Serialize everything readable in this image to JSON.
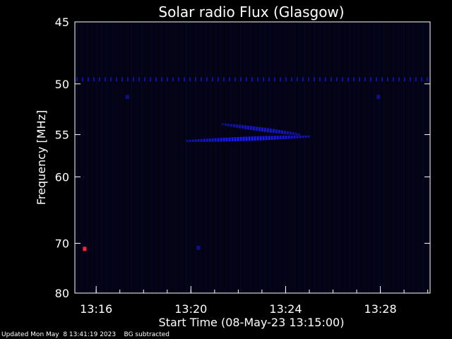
{
  "chart_data": {
    "type": "heatmap",
    "title": "Solar radio Flux (Glasgow)",
    "xlabel": "Start Time (08-May-23 13:15:00)",
    "ylabel": "Frequency [MHz]",
    "x_ticks": [
      {
        "label": "13:16",
        "minutes": 76
      },
      {
        "label": "13:20",
        "minutes": 80
      },
      {
        "label": "13:24",
        "minutes": 84
      },
      {
        "label": "13:28",
        "minutes": 88
      }
    ],
    "xlim_minutes": [
      75.1,
      90.1
    ],
    "y_ticks": [
      45,
      50,
      55,
      60,
      70,
      80
    ],
    "ylim": [
      45,
      80
    ],
    "y_scale": "reciprocal",
    "colors": {
      "background": "#000000",
      "plot": "#030314",
      "signal": "#1a1aff",
      "faint": "#0b0b66",
      "hot": "#ff2040"
    },
    "features": [
      {
        "name": "interference band",
        "freq_mhz": 49.6,
        "t_start": 75.1,
        "t_end": 90.1,
        "intensity": 0.6
      },
      {
        "name": "burst lane upper",
        "freq_mhz_start": 53.9,
        "freq_mhz_end": 55.0,
        "t_start": 81.3,
        "t_end": 84.6,
        "intensity": 0.8
      },
      {
        "name": "burst lane lower",
        "freq_mhz_start": 55.7,
        "freq_mhz_end": 55.2,
        "t_start": 79.8,
        "t_end": 85.0,
        "intensity": 1.0
      },
      {
        "name": "spot",
        "freq_mhz": 71.0,
        "time_minutes": 75.5,
        "intensity": 1.0
      },
      {
        "name": "spot",
        "freq_mhz": 70.8,
        "time_minutes": 80.3,
        "intensity": 0.5
      },
      {
        "name": "spot",
        "freq_mhz": 51.2,
        "time_minutes": 77.3,
        "intensity": 0.5
      },
      {
        "name": "spot",
        "freq_mhz": 51.2,
        "time_minutes": 87.9,
        "intensity": 0.5
      }
    ]
  },
  "footer": "Updated Mon May  8 13:41:19 2023    BG subtracted"
}
